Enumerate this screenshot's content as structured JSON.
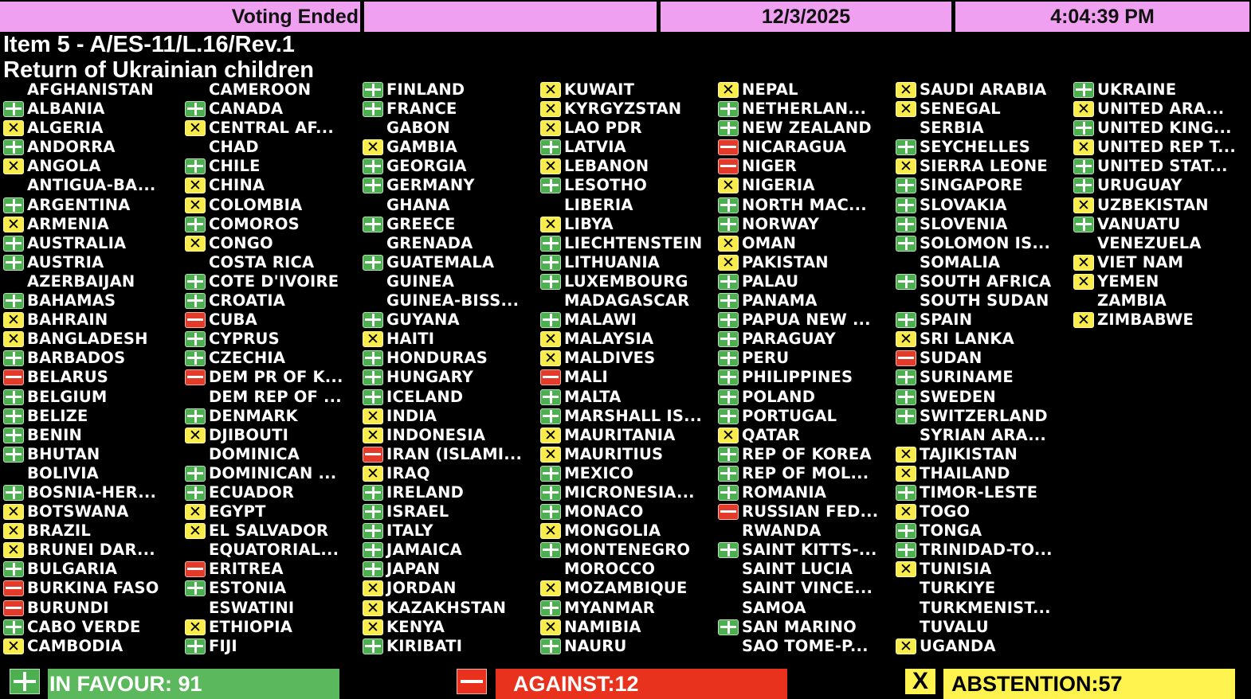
{
  "header": {
    "status": "Voting Ended",
    "blank": "",
    "date": "12/3/2025",
    "time": "4:04:39 PM"
  },
  "item": {
    "line1": "Item 5 - A/ES-11/L.16/Rev.1",
    "line2": "Return of Ukrainian children"
  },
  "colors": {
    "favour": "#5cb85c",
    "against": "#e8321e",
    "abstention": "#fff44f",
    "header": "#f0a0f0"
  },
  "vote_legend": {
    "Y": "plus-icon (in favour)",
    "N": "minus-icon (against)",
    "A": "x-icon (abstention)",
    "": "no vote"
  },
  "columns": [
    [
      [
        "AFGHANISTAN",
        ""
      ],
      [
        "ALBANIA",
        "Y"
      ],
      [
        "ALGERIA",
        "A"
      ],
      [
        "ANDORRA",
        "Y"
      ],
      [
        "ANGOLA",
        "A"
      ],
      [
        "ANTIGUA-BA...",
        ""
      ],
      [
        "ARGENTINA",
        "Y"
      ],
      [
        "ARMENIA",
        "A"
      ],
      [
        "AUSTRALIA",
        "Y"
      ],
      [
        "AUSTRIA",
        "Y"
      ],
      [
        "AZERBAIJAN",
        ""
      ],
      [
        "BAHAMAS",
        "Y"
      ],
      [
        "BAHRAIN",
        "A"
      ],
      [
        "BANGLADESH",
        "A"
      ],
      [
        "BARBADOS",
        "Y"
      ],
      [
        "BELARUS",
        "N"
      ],
      [
        "BELGIUM",
        "Y"
      ],
      [
        "BELIZE",
        "Y"
      ],
      [
        "BENIN",
        "Y"
      ],
      [
        "BHUTAN",
        "Y"
      ],
      [
        "BOLIVIA",
        ""
      ],
      [
        "BOSNIA-HER...",
        "Y"
      ],
      [
        "BOTSWANA",
        "A"
      ],
      [
        "BRAZIL",
        "A"
      ],
      [
        "BRUNEI DAR...",
        "A"
      ],
      [
        "BULGARIA",
        "Y"
      ],
      [
        "BURKINA FASO",
        "N"
      ],
      [
        "BURUNDI",
        "N"
      ],
      [
        "CABO VERDE",
        "Y"
      ],
      [
        "CAMBODIA",
        "A"
      ]
    ],
    [
      [
        "CAMEROON",
        ""
      ],
      [
        "CANADA",
        "Y"
      ],
      [
        "CENTRAL AF...",
        "A"
      ],
      [
        "CHAD",
        ""
      ],
      [
        "CHILE",
        "Y"
      ],
      [
        "CHINA",
        "A"
      ],
      [
        "COLOMBIA",
        "A"
      ],
      [
        "COMOROS",
        "Y"
      ],
      [
        "CONGO",
        "A"
      ],
      [
        "COSTA RICA",
        ""
      ],
      [
        "COTE D'IVOIRE",
        "Y"
      ],
      [
        "CROATIA",
        "Y"
      ],
      [
        "CUBA",
        "N"
      ],
      [
        "CYPRUS",
        "Y"
      ],
      [
        "CZECHIA",
        "Y"
      ],
      [
        "DEM PR OF K...",
        "N"
      ],
      [
        "DEM REP OF ...",
        ""
      ],
      [
        "DENMARK",
        "Y"
      ],
      [
        "DJIBOUTI",
        "A"
      ],
      [
        "DOMINICA",
        ""
      ],
      [
        "DOMINICAN ...",
        "Y"
      ],
      [
        "ECUADOR",
        "Y"
      ],
      [
        "EGYPT",
        "A"
      ],
      [
        "EL SALVADOR",
        "A"
      ],
      [
        "EQUATORIAL...",
        ""
      ],
      [
        "ERITREA",
        "N"
      ],
      [
        "ESTONIA",
        "Y"
      ],
      [
        "ESWATINI",
        ""
      ],
      [
        "ETHIOPIA",
        "A"
      ],
      [
        "FIJI",
        "Y"
      ]
    ],
    [
      [
        "FINLAND",
        "Y"
      ],
      [
        "FRANCE",
        "Y"
      ],
      [
        "GABON",
        ""
      ],
      [
        "GAMBIA",
        "A"
      ],
      [
        "GEORGIA",
        "Y"
      ],
      [
        "GERMANY",
        "Y"
      ],
      [
        "GHANA",
        ""
      ],
      [
        "GREECE",
        "Y"
      ],
      [
        "GRENADA",
        ""
      ],
      [
        "GUATEMALA",
        "Y"
      ],
      [
        "GUINEA",
        ""
      ],
      [
        "GUINEA-BISS...",
        ""
      ],
      [
        "GUYANA",
        "Y"
      ],
      [
        "HAITI",
        "A"
      ],
      [
        "HONDURAS",
        "Y"
      ],
      [
        "HUNGARY",
        "Y"
      ],
      [
        "ICELAND",
        "Y"
      ],
      [
        "INDIA",
        "A"
      ],
      [
        "INDONESIA",
        "A"
      ],
      [
        "IRAN (ISLAMI...",
        "N"
      ],
      [
        "IRAQ",
        "A"
      ],
      [
        "IRELAND",
        "Y"
      ],
      [
        "ISRAEL",
        "Y"
      ],
      [
        "ITALY",
        "Y"
      ],
      [
        "JAMAICA",
        "Y"
      ],
      [
        "JAPAN",
        "Y"
      ],
      [
        "JORDAN",
        "A"
      ],
      [
        "KAZAKHSTAN",
        "A"
      ],
      [
        "KENYA",
        "A"
      ],
      [
        "KIRIBATI",
        "Y"
      ]
    ],
    [
      [
        "KUWAIT",
        "A"
      ],
      [
        "KYRGYZSTAN",
        "A"
      ],
      [
        "LAO PDR",
        "A"
      ],
      [
        "LATVIA",
        "Y"
      ],
      [
        "LEBANON",
        "A"
      ],
      [
        "LESOTHO",
        "Y"
      ],
      [
        "LIBERIA",
        ""
      ],
      [
        "LIBYA",
        "A"
      ],
      [
        "LIECHTENSTEIN",
        "Y"
      ],
      [
        "LITHUANIA",
        "Y"
      ],
      [
        "LUXEMBOURG",
        "Y"
      ],
      [
        "MADAGASCAR",
        ""
      ],
      [
        "MALAWI",
        "Y"
      ],
      [
        "MALAYSIA",
        "A"
      ],
      [
        "MALDIVES",
        "A"
      ],
      [
        "MALI",
        "N"
      ],
      [
        "MALTA",
        "Y"
      ],
      [
        "MARSHALL IS...",
        "Y"
      ],
      [
        "MAURITANIA",
        "A"
      ],
      [
        "MAURITIUS",
        "A"
      ],
      [
        "MEXICO",
        "Y"
      ],
      [
        "MICRONESIA...",
        "Y"
      ],
      [
        "MONACO",
        "Y"
      ],
      [
        "MONGOLIA",
        "A"
      ],
      [
        "MONTENEGRO",
        "Y"
      ],
      [
        "MOROCCO",
        ""
      ],
      [
        "MOZAMBIQUE",
        "A"
      ],
      [
        "MYANMAR",
        "Y"
      ],
      [
        "NAMIBIA",
        "A"
      ],
      [
        "NAURU",
        "Y"
      ]
    ],
    [
      [
        "NEPAL",
        "A"
      ],
      [
        "NETHERLAN...",
        "Y"
      ],
      [
        "NEW ZEALAND",
        "Y"
      ],
      [
        "NICARAGUA",
        "N"
      ],
      [
        "NIGER",
        "N"
      ],
      [
        "NIGERIA",
        "A"
      ],
      [
        "NORTH MAC...",
        "Y"
      ],
      [
        "NORWAY",
        "Y"
      ],
      [
        "OMAN",
        "A"
      ],
      [
        "PAKISTAN",
        "A"
      ],
      [
        "PALAU",
        "Y"
      ],
      [
        "PANAMA",
        "Y"
      ],
      [
        "PAPUA NEW ...",
        "Y"
      ],
      [
        "PARAGUAY",
        "Y"
      ],
      [
        "PERU",
        "Y"
      ],
      [
        "PHILIPPINES",
        "Y"
      ],
      [
        "POLAND",
        "Y"
      ],
      [
        "PORTUGAL",
        "Y"
      ],
      [
        "QATAR",
        "A"
      ],
      [
        "REP OF KOREA",
        "Y"
      ],
      [
        "REP OF MOL...",
        "Y"
      ],
      [
        "ROMANIA",
        "Y"
      ],
      [
        "RUSSIAN FED...",
        "N"
      ],
      [
        "RWANDA",
        ""
      ],
      [
        "SAINT KITTS-...",
        "Y"
      ],
      [
        "SAINT LUCIA",
        ""
      ],
      [
        "SAINT VINCE...",
        ""
      ],
      [
        "SAMOA",
        ""
      ],
      [
        "SAN MARINO",
        "Y"
      ],
      [
        "SAO TOME-P...",
        ""
      ]
    ],
    [
      [
        "SAUDI ARABIA",
        "A"
      ],
      [
        "SENEGAL",
        "A"
      ],
      [
        "SERBIA",
        ""
      ],
      [
        "SEYCHELLES",
        "Y"
      ],
      [
        "SIERRA LEONE",
        "A"
      ],
      [
        "SINGAPORE",
        "Y"
      ],
      [
        "SLOVAKIA",
        "Y"
      ],
      [
        "SLOVENIA",
        "Y"
      ],
      [
        "SOLOMON IS...",
        "Y"
      ],
      [
        "SOMALIA",
        ""
      ],
      [
        "SOUTH AFRICA",
        "Y"
      ],
      [
        "SOUTH SUDAN",
        ""
      ],
      [
        "SPAIN",
        "Y"
      ],
      [
        "SRI LANKA",
        "A"
      ],
      [
        "SUDAN",
        "N"
      ],
      [
        "SURINAME",
        "Y"
      ],
      [
        "SWEDEN",
        "Y"
      ],
      [
        "SWITZERLAND",
        "Y"
      ],
      [
        "SYRIAN ARA...",
        ""
      ],
      [
        "TAJIKISTAN",
        "A"
      ],
      [
        "THAILAND",
        "A"
      ],
      [
        "TIMOR-LESTE",
        "Y"
      ],
      [
        "TOGO",
        "A"
      ],
      [
        "TONGA",
        "Y"
      ],
      [
        "TRINIDAD-TO...",
        "Y"
      ],
      [
        "TUNISIA",
        "A"
      ],
      [
        "TURKIYE",
        ""
      ],
      [
        "TURKMENIST...",
        ""
      ],
      [
        "TUVALU",
        ""
      ],
      [
        "UGANDA",
        "A"
      ]
    ],
    [
      [
        "UKRAINE",
        "Y"
      ],
      [
        "UNITED ARA...",
        "A"
      ],
      [
        "UNITED KING...",
        "Y"
      ],
      [
        "UNITED REP T...",
        "A"
      ],
      [
        "UNITED STAT...",
        "Y"
      ],
      [
        "URUGUAY",
        "Y"
      ],
      [
        "UZBEKISTAN",
        "A"
      ],
      [
        "VANUATU",
        "Y"
      ],
      [
        "VENEZUELA",
        ""
      ],
      [
        "VIET NAM",
        "A"
      ],
      [
        "YEMEN",
        "A"
      ],
      [
        "ZAMBIA",
        ""
      ],
      [
        "ZIMBABWE",
        "A"
      ]
    ]
  ],
  "totals": {
    "favour": "IN FAVOUR: 91",
    "against": "AGAINST:12",
    "abstention": "ABSTENTION:57",
    "abstention_glyph": "X"
  }
}
